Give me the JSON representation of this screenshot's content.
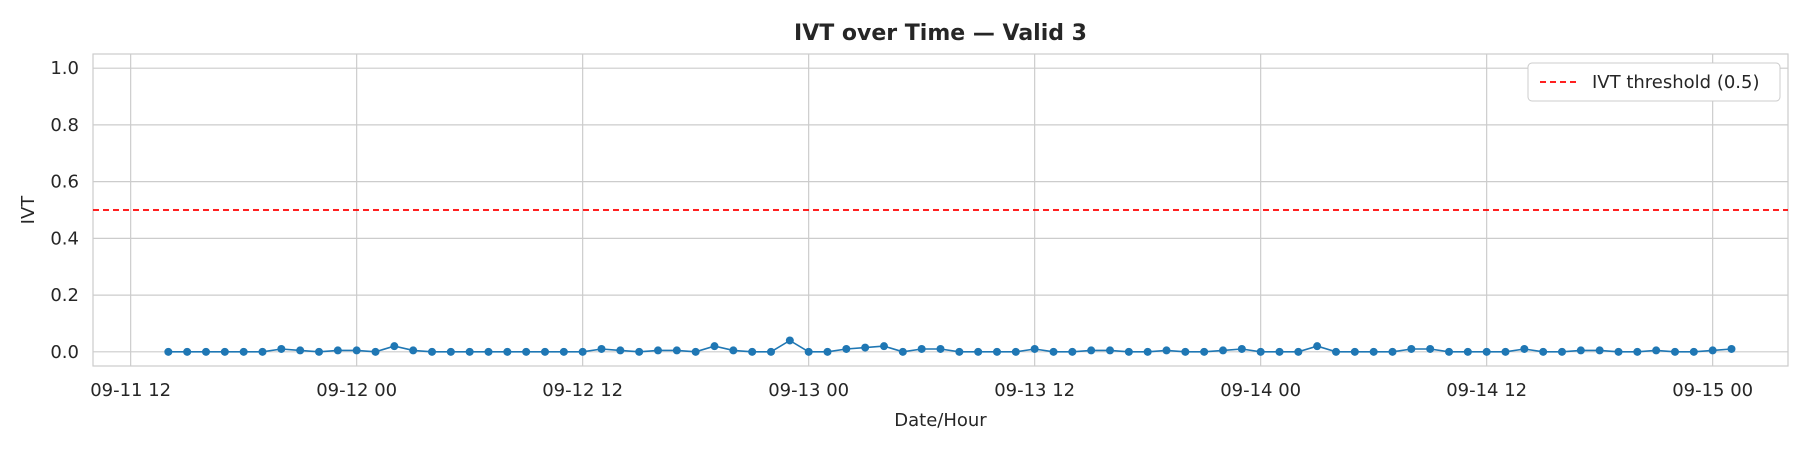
{
  "chart_data": {
    "type": "line",
    "title": "IVT over Time — Valid 3",
    "xlabel": "Date/Hour",
    "ylabel": "IVT",
    "ylim": [
      -0.05,
      1.05
    ],
    "xlim": [
      "2025-09-11 10:00",
      "2025-09-15 04:00"
    ],
    "yticks": [
      "0.0",
      "0.2",
      "0.4",
      "0.6",
      "0.8",
      "1.0"
    ],
    "xticks": [
      {
        "t": "2025-09-11 12:00",
        "label": "09-11 12"
      },
      {
        "t": "2025-09-12 00:00",
        "label": "09-12 00"
      },
      {
        "t": "2025-09-12 12:00",
        "label": "09-12 12"
      },
      {
        "t": "2025-09-13 00:00",
        "label": "09-13 00"
      },
      {
        "t": "2025-09-13 12:00",
        "label": "09-13 12"
      },
      {
        "t": "2025-09-14 00:00",
        "label": "09-14 00"
      },
      {
        "t": "2025-09-14 12:00",
        "label": "09-14 12"
      },
      {
        "t": "2025-09-15 00:00",
        "label": "09-15 00"
      }
    ],
    "grid": true,
    "legend_position": "top-right",
    "threshold": {
      "value": 0.5,
      "label": "IVT threshold (0.5)",
      "color": "#ff0000"
    },
    "series": [
      {
        "color": "#1f77b4",
        "x": [
          "2025-09-11 14:00",
          "2025-09-11 15:00",
          "2025-09-11 16:00",
          "2025-09-11 17:00",
          "2025-09-11 18:00",
          "2025-09-11 19:00",
          "2025-09-11 20:00",
          "2025-09-11 21:00",
          "2025-09-11 22:00",
          "2025-09-11 23:00",
          "2025-09-12 00:00",
          "2025-09-12 01:00",
          "2025-09-12 02:00",
          "2025-09-12 03:00",
          "2025-09-12 04:00",
          "2025-09-12 05:00",
          "2025-09-12 06:00",
          "2025-09-12 07:00",
          "2025-09-12 08:00",
          "2025-09-12 09:00",
          "2025-09-12 10:00",
          "2025-09-12 11:00",
          "2025-09-12 12:00",
          "2025-09-12 13:00",
          "2025-09-12 14:00",
          "2025-09-12 15:00",
          "2025-09-12 16:00",
          "2025-09-12 17:00",
          "2025-09-12 18:00",
          "2025-09-12 19:00",
          "2025-09-12 20:00",
          "2025-09-12 21:00",
          "2025-09-12 22:00",
          "2025-09-12 23:00",
          "2025-09-13 00:00",
          "2025-09-13 01:00",
          "2025-09-13 02:00",
          "2025-09-13 03:00",
          "2025-09-13 04:00",
          "2025-09-13 05:00",
          "2025-09-13 06:00",
          "2025-09-13 07:00",
          "2025-09-13 08:00",
          "2025-09-13 09:00",
          "2025-09-13 10:00",
          "2025-09-13 11:00",
          "2025-09-13 12:00",
          "2025-09-13 13:00",
          "2025-09-13 14:00",
          "2025-09-13 15:00",
          "2025-09-13 16:00",
          "2025-09-13 17:00",
          "2025-09-13 18:00",
          "2025-09-13 19:00",
          "2025-09-13 20:00",
          "2025-09-13 21:00",
          "2025-09-13 22:00",
          "2025-09-13 23:00",
          "2025-09-14 00:00",
          "2025-09-14 01:00",
          "2025-09-14 02:00",
          "2025-09-14 03:00",
          "2025-09-14 04:00",
          "2025-09-14 05:00",
          "2025-09-14 06:00",
          "2025-09-14 07:00",
          "2025-09-14 08:00",
          "2025-09-14 09:00",
          "2025-09-14 10:00",
          "2025-09-14 11:00",
          "2025-09-14 12:00",
          "2025-09-14 13:00",
          "2025-09-14 14:00",
          "2025-09-14 15:00",
          "2025-09-14 16:00",
          "2025-09-14 17:00",
          "2025-09-14 18:00",
          "2025-09-14 19:00",
          "2025-09-14 20:00",
          "2025-09-14 21:00",
          "2025-09-14 22:00",
          "2025-09-14 23:00",
          "2025-09-15 00:00",
          "2025-09-15 01:00"
        ],
        "values": [
          0.0,
          0.0,
          0.0,
          0.0,
          0.0,
          0.0,
          0.01,
          0.005,
          0.0,
          0.005,
          0.005,
          0.0,
          0.02,
          0.005,
          0.0,
          0.0,
          0.0,
          0.0,
          0.0,
          0.0,
          0.0,
          0.0,
          0.0,
          0.01,
          0.005,
          0.0,
          0.005,
          0.005,
          0.0,
          0.02,
          0.005,
          0.0,
          0.0,
          0.04,
          0.0,
          0.0,
          0.01,
          0.015,
          0.02,
          0.0,
          0.01,
          0.01,
          0.0,
          0.0,
          0.0,
          0.0,
          0.01,
          0.0,
          0.0,
          0.005,
          0.005,
          0.0,
          0.0,
          0.005,
          0.0,
          0.0,
          0.005,
          0.01,
          0.0,
          0.0,
          0.0,
          0.02,
          0.0,
          0.0,
          0.0,
          0.0,
          0.01,
          0.01,
          0.0,
          0.0,
          0.0,
          0.0,
          0.01,
          0.0,
          0.0,
          0.005,
          0.005,
          0.0,
          0.0,
          0.005,
          0.0,
          0.0,
          0.005,
          0.01
        ]
      }
    ]
  }
}
